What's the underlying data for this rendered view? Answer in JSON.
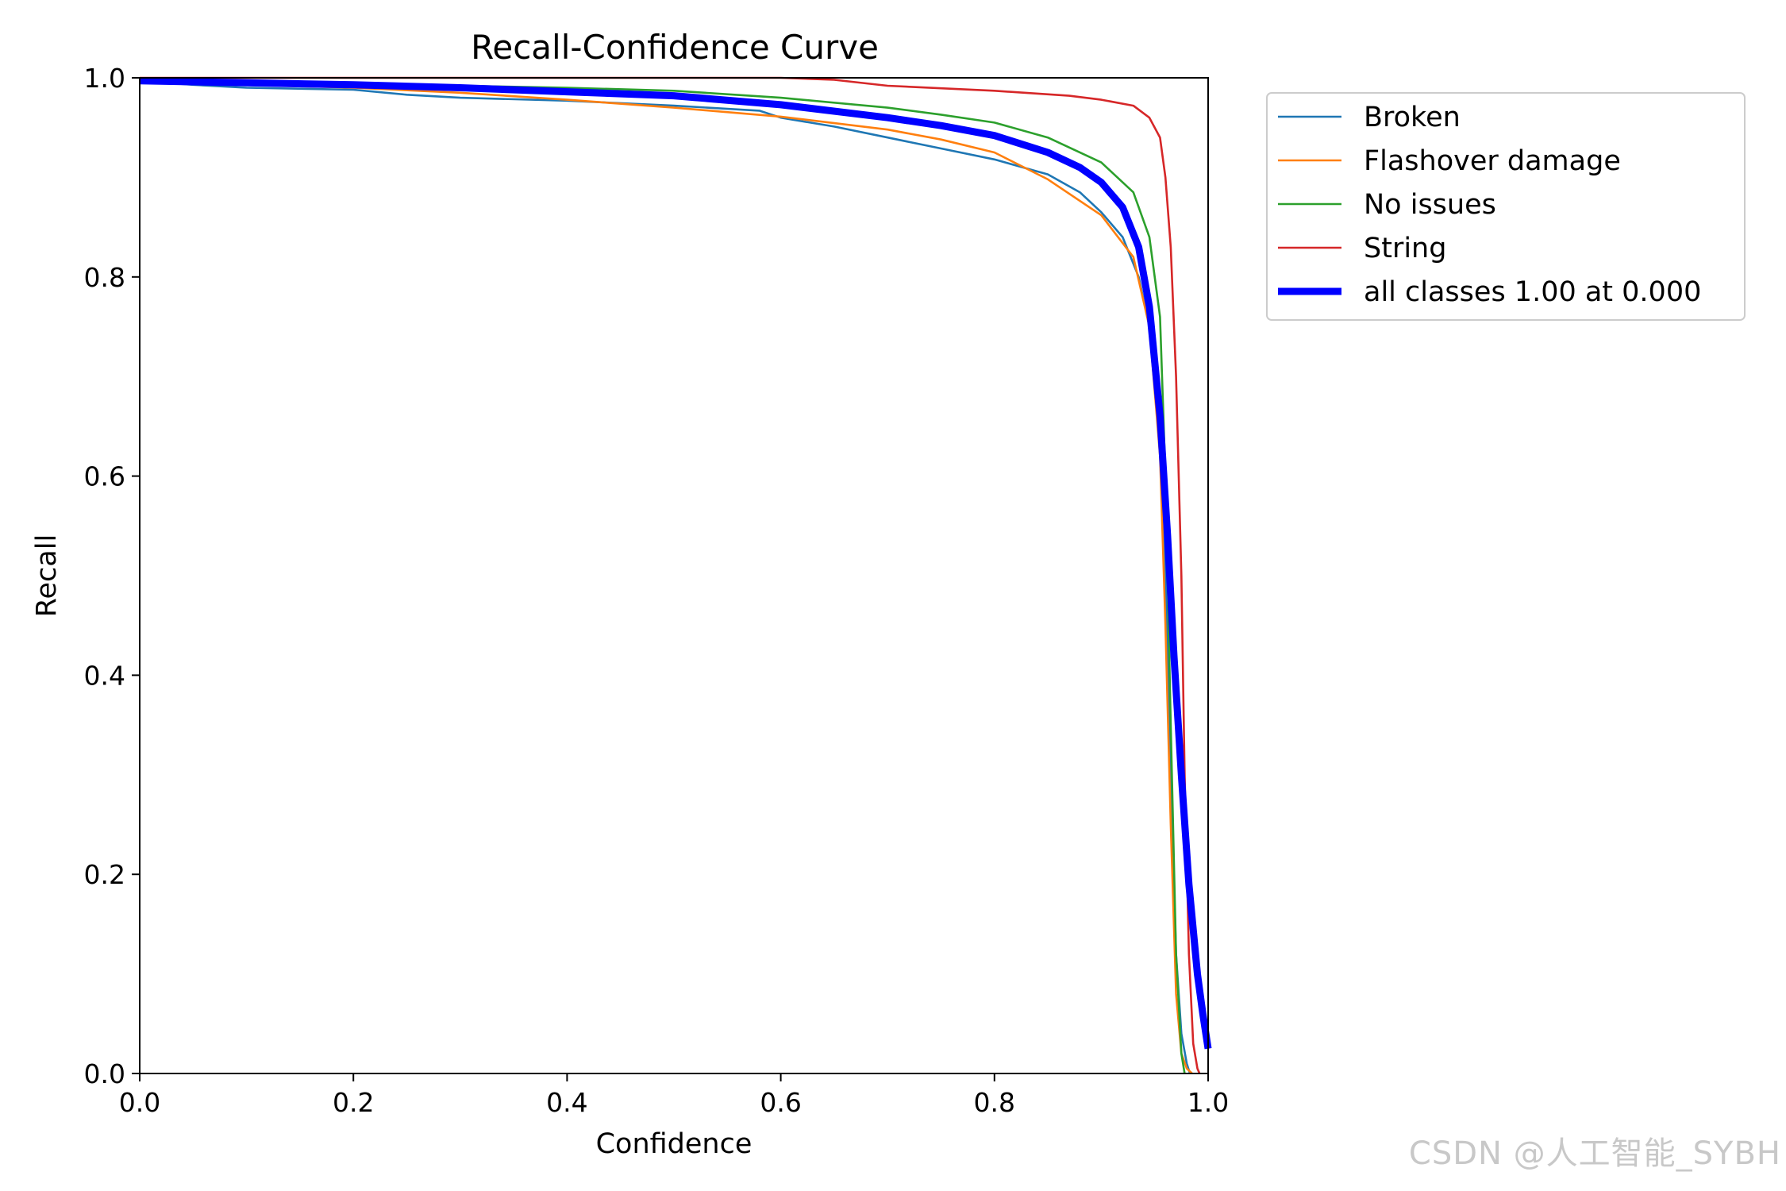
{
  "watermark": "CSDN @人工智能_SYBH",
  "chart_data": {
    "type": "line",
    "title": "Recall-Confidence Curve",
    "xlabel": "Confidence",
    "ylabel": "Recall",
    "xlim": [
      0.0,
      1.0
    ],
    "ylim": [
      0.0,
      1.0
    ],
    "xticks": [
      "0.0",
      "0.2",
      "0.4",
      "0.6",
      "0.8",
      "1.0"
    ],
    "yticks": [
      "0.0",
      "0.2",
      "0.4",
      "0.6",
      "0.8",
      "1.0"
    ],
    "grid": false,
    "legend_position": "outside-top-right",
    "series": [
      {
        "name": "Broken",
        "color": "#1f77b4",
        "emphasis": false,
        "x": [
          0.0,
          0.05,
          0.1,
          0.2,
          0.25,
          0.3,
          0.4,
          0.5,
          0.58,
          0.6,
          0.65,
          0.7,
          0.75,
          0.8,
          0.85,
          0.88,
          0.9,
          0.92,
          0.935,
          0.945,
          0.955,
          0.96,
          0.965,
          0.97,
          0.975,
          0.98,
          0.983
        ],
        "y": [
          0.997,
          0.993,
          0.99,
          0.988,
          0.983,
          0.98,
          0.977,
          0.972,
          0.967,
          0.96,
          0.951,
          0.94,
          0.929,
          0.918,
          0.903,
          0.885,
          0.865,
          0.84,
          0.8,
          0.75,
          0.65,
          0.5,
          0.3,
          0.12,
          0.04,
          0.01,
          0.0
        ]
      },
      {
        "name": "Flashover damage",
        "color": "#ff7f0e",
        "emphasis": false,
        "x": [
          0.0,
          0.1,
          0.2,
          0.3,
          0.4,
          0.5,
          0.6,
          0.7,
          0.75,
          0.8,
          0.85,
          0.9,
          0.93,
          0.945,
          0.955,
          0.96,
          0.965,
          0.97,
          0.975,
          0.98,
          0.985
        ],
        "y": [
          0.997,
          0.993,
          0.99,
          0.985,
          0.978,
          0.97,
          0.961,
          0.948,
          0.938,
          0.925,
          0.898,
          0.862,
          0.82,
          0.75,
          0.62,
          0.45,
          0.25,
          0.08,
          0.02,
          0.005,
          0.0
        ]
      },
      {
        "name": "No issues",
        "color": "#2ca02c",
        "emphasis": false,
        "x": [
          0.0,
          0.1,
          0.2,
          0.3,
          0.4,
          0.5,
          0.6,
          0.7,
          0.75,
          0.8,
          0.85,
          0.9,
          0.93,
          0.945,
          0.955,
          0.96,
          0.965,
          0.97,
          0.975,
          0.978
        ],
        "y": [
          0.998,
          0.996,
          0.994,
          0.992,
          0.99,
          0.987,
          0.98,
          0.97,
          0.963,
          0.955,
          0.94,
          0.915,
          0.885,
          0.84,
          0.76,
          0.6,
          0.35,
          0.12,
          0.02,
          0.0
        ]
      },
      {
        "name": "String",
        "color": "#d62728",
        "emphasis": false,
        "x": [
          0.0,
          0.3,
          0.5,
          0.6,
          0.65,
          0.7,
          0.8,
          0.87,
          0.9,
          0.93,
          0.945,
          0.955,
          0.96,
          0.965,
          0.97,
          0.975,
          0.978,
          0.982,
          0.986,
          0.99,
          0.992
        ],
        "y": [
          1.0,
          1.0,
          1.0,
          1.0,
          0.998,
          0.992,
          0.987,
          0.982,
          0.978,
          0.972,
          0.96,
          0.94,
          0.9,
          0.83,
          0.7,
          0.5,
          0.3,
          0.12,
          0.03,
          0.005,
          0.0
        ]
      },
      {
        "name": "all classes 1.00 at 0.000",
        "color": "#0000ff",
        "emphasis": true,
        "x": [
          0.0,
          0.1,
          0.2,
          0.3,
          0.4,
          0.5,
          0.6,
          0.7,
          0.75,
          0.8,
          0.85,
          0.88,
          0.9,
          0.92,
          0.935,
          0.945,
          0.955,
          0.962,
          0.968,
          0.975,
          0.982,
          0.99,
          0.995,
          1.0
        ],
        "y": [
          0.997,
          0.995,
          0.993,
          0.99,
          0.986,
          0.982,
          0.973,
          0.96,
          0.952,
          0.942,
          0.925,
          0.91,
          0.895,
          0.87,
          0.83,
          0.77,
          0.66,
          0.54,
          0.42,
          0.3,
          0.19,
          0.1,
          0.06,
          0.025
        ]
      }
    ]
  }
}
